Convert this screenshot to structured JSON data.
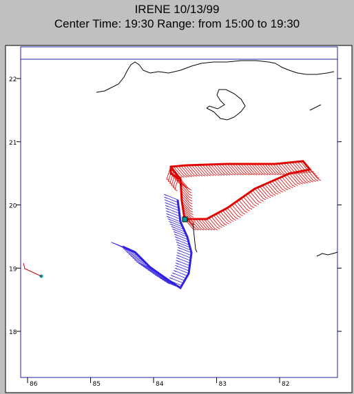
{
  "header": {
    "title": "IRENE 10/13/99",
    "subtitle": "Center Time: 19:30  Range: from 15:00 to 19:30"
  },
  "axes": {
    "lat_labels": [
      22,
      21,
      20,
      19,
      18
    ],
    "lon_labels": [
      86,
      85,
      84,
      83,
      82
    ]
  }
}
